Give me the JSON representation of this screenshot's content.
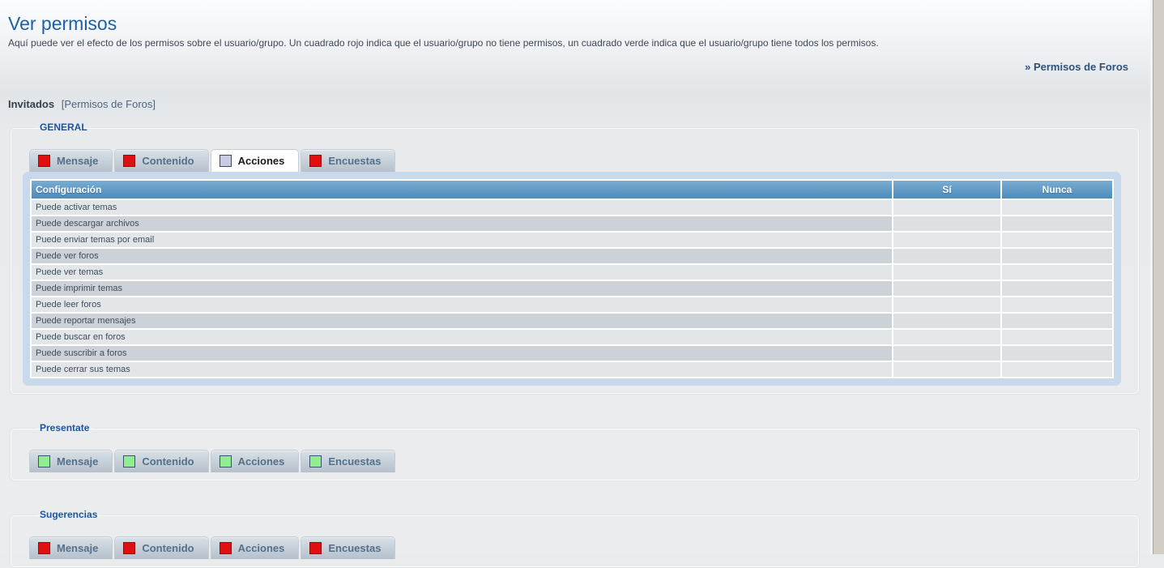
{
  "page": {
    "title": "Ver permisos",
    "description": "Aquí puede ver el efecto de los permisos sobre el usuario/grupo. Un cuadrado rojo indica que el usuario/grupo no tiene permisos, un cuadrado verde indica que el usuario/grupo tiene todos los permisos.",
    "nav_link": "» Permisos de Foros",
    "subject_name": "Invitados",
    "subject_scope": "[Permisos de Foros]"
  },
  "colors": {
    "granted_green": "#8bf18b",
    "denied_pink": "#f0afb1",
    "icon_red": "#e01010",
    "icon_green": "#90ee90",
    "icon_custom": "#c9cbe3",
    "header_blue_top": "#79add3",
    "header_blue_bottom": "#4d8bb9"
  },
  "sections": {
    "general": {
      "legend": "GENERAL",
      "tabs": [
        {
          "label": "Mensaje",
          "icon": "red",
          "active": false
        },
        {
          "label": "Contenido",
          "icon": "red",
          "active": false
        },
        {
          "label": "Acciones",
          "icon": "custom",
          "active": true
        },
        {
          "label": "Encuestas",
          "icon": "red",
          "active": false
        }
      ],
      "table": {
        "columns": [
          "Configuración",
          "Sí",
          "Nunca"
        ],
        "rows": [
          {
            "label": "Puede activar temas",
            "value": "nunca"
          },
          {
            "label": "Puede descargar archivos",
            "value": "si"
          },
          {
            "label": "Puede enviar temas por email",
            "value": "nunca"
          },
          {
            "label": "Puede ver foros",
            "value": "si"
          },
          {
            "label": "Puede ver temas",
            "value": "si"
          },
          {
            "label": "Puede imprimir temas",
            "value": "si"
          },
          {
            "label": "Puede leer foros",
            "value": "si"
          },
          {
            "label": "Puede reportar mensajes",
            "value": "nunca"
          },
          {
            "label": "Puede buscar en foros",
            "value": "si"
          },
          {
            "label": "Puede suscribir a foros",
            "value": "si"
          },
          {
            "label": "Puede cerrar sus temas",
            "value": "nunca"
          }
        ]
      }
    },
    "presentate": {
      "legend": "Presentate",
      "tabs": [
        {
          "label": "Mensaje",
          "icon": "green",
          "active": false
        },
        {
          "label": "Contenido",
          "icon": "green",
          "active": false
        },
        {
          "label": "Acciones",
          "icon": "green",
          "active": false
        },
        {
          "label": "Encuestas",
          "icon": "green",
          "active": false
        }
      ]
    },
    "sugerencias": {
      "legend": "Sugerencias",
      "tabs": [
        {
          "label": "Mensaje",
          "icon": "red",
          "active": false
        },
        {
          "label": "Contenido",
          "icon": "red",
          "active": false
        },
        {
          "label": "Acciones",
          "icon": "red",
          "active": false
        },
        {
          "label": "Encuestas",
          "icon": "red",
          "active": false
        }
      ]
    }
  }
}
